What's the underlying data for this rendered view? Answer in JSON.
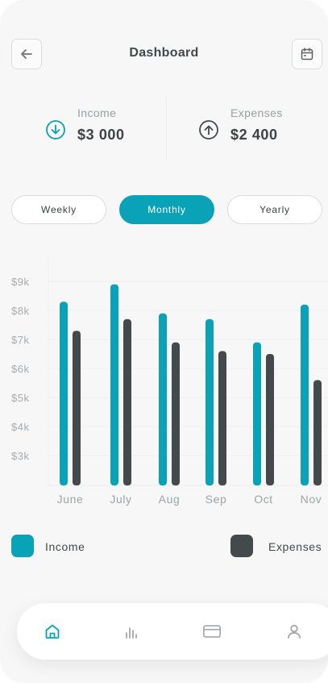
{
  "header": {
    "title": "Dashboard",
    "back_icon": "arrow-left-icon",
    "calendar_icon": "calendar-icon"
  },
  "summary": {
    "income": {
      "label": "Income",
      "value": "$3 000",
      "icon": "arrow-down-circle-icon"
    },
    "expenses": {
      "label": "Expenses",
      "value": "$2 400",
      "icon": "arrow-up-circle-icon"
    }
  },
  "period_tabs": [
    {
      "label": "Weekly",
      "active": false
    },
    {
      "label": "Monthly",
      "active": true
    },
    {
      "label": "Yearly",
      "active": false
    }
  ],
  "colors": {
    "accent": "#09a2b6",
    "dark": "#444a4c"
  },
  "chart_data": {
    "type": "bar",
    "categories": [
      "June",
      "July",
      "Aug",
      "Sep",
      "Oct",
      "Nov"
    ],
    "series": [
      {
        "name": "Income",
        "values": [
          8.3,
          8.9,
          7.9,
          7.7,
          6.9,
          8.2
        ]
      },
      {
        "name": "Expenses",
        "values": [
          7.3,
          7.7,
          6.9,
          6.6,
          6.5,
          5.6
        ]
      }
    ],
    "yticks": [
      "$3k",
      "$4k",
      "$5k",
      "$6k",
      "$7k",
      "$8k",
      "$9k"
    ],
    "ylim": [
      2,
      9.5
    ],
    "grid": true,
    "legend": "bottom"
  },
  "legend": [
    {
      "label": "Income"
    },
    {
      "label": "Expenses"
    }
  ],
  "bottom_nav": [
    {
      "icon": "home-icon",
      "active": true
    },
    {
      "icon": "bar-chart-icon",
      "active": false
    },
    {
      "icon": "credit-card-icon",
      "active": false
    },
    {
      "icon": "user-icon",
      "active": false
    }
  ]
}
